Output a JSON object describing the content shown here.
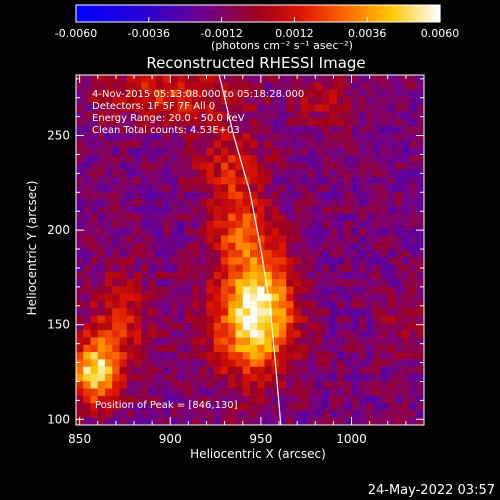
{
  "chart_data": {
    "type": "heatmap",
    "title": "Reconstructed RHESSI Image",
    "xlabel": "Heliocentric X (arcsec)",
    "ylabel": "Heliocentric Y (arcsec)",
    "xlim": [
      848,
      1040
    ],
    "ylim": [
      97,
      282
    ],
    "xticks": [
      850,
      900,
      950,
      1000
    ],
    "yticks": [
      100,
      150,
      200,
      250
    ],
    "tick_labels_x": [
      "850",
      "900",
      "950",
      "1000"
    ],
    "tick_labels_y": [
      "100",
      "150",
      "200",
      "250"
    ],
    "grid": false,
    "colorbar": {
      "range": [
        -0.006,
        0.006
      ],
      "tick_labels": [
        "-0.0060",
        "-0.0036",
        "-0.0012",
        "0.0012",
        "0.0036",
        "0.0060"
      ],
      "unit_label": "(photons cm⁻² s⁻¹ asec⁻²)",
      "placement": "top"
    },
    "info_lines": [
      "4-Nov-2015 05:13:08.000 to 05:18:28.000",
      "Detectors: 1F 5F 7F  All 0",
      "Energy Range: 20.0 - 50.0 keV",
      "Clean     Total counts: 4.53E+03"
    ],
    "peak_label": "Position of Peak = [846,130]",
    "peak_position": [
      846,
      130
    ],
    "limb_line": [
      [
        927,
        282
      ],
      [
        935,
        250
      ],
      [
        944,
        220
      ],
      [
        950,
        190
      ],
      [
        955,
        160
      ],
      [
        958,
        130
      ],
      [
        961,
        97
      ]
    ],
    "sources": [
      {
        "x": 945,
        "y": 150,
        "sx": 16,
        "sy": 20,
        "amp": 0.0052
      },
      {
        "x": 950,
        "y": 172,
        "sx": 12,
        "sy": 24,
        "amp": 0.0034
      },
      {
        "x": 935,
        "y": 205,
        "sx": 10,
        "sy": 16,
        "amp": 0.0028
      },
      {
        "x": 932,
        "y": 238,
        "sx": 14,
        "sy": 14,
        "amp": 0.0022
      },
      {
        "x": 900,
        "y": 272,
        "sx": 26,
        "sy": 10,
        "amp": 0.003
      },
      {
        "x": 858,
        "y": 125,
        "sx": 9,
        "sy": 12,
        "amp": 0.0062
      },
      {
        "x": 872,
        "y": 150,
        "sx": 12,
        "sy": 20,
        "amp": 0.0026
      },
      {
        "x": 985,
        "y": 268,
        "sx": 12,
        "sy": 10,
        "amp": 0.0016
      },
      {
        "x": 1028,
        "y": 150,
        "sx": 10,
        "sy": 12,
        "amp": 0.0012
      }
    ],
    "background_level": -0.0014,
    "noise_level": 0.0011
  },
  "timestamp": "24-May-2022 03:57"
}
